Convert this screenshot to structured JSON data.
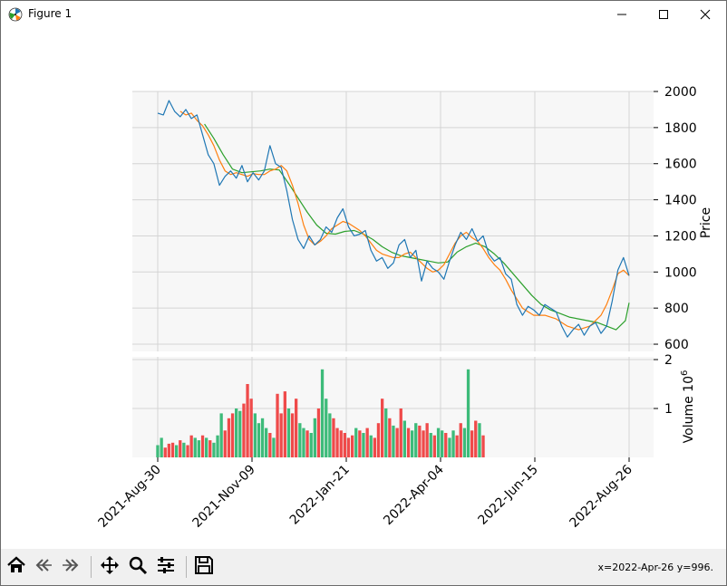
{
  "window": {
    "title": "Figure 1",
    "icons": [
      "matplotlib-logo-icon",
      "minimize-icon",
      "maximize-icon",
      "close-icon"
    ]
  },
  "toolbar": {
    "buttons": [
      "home-icon",
      "back-icon",
      "forward-icon",
      "pan-icon",
      "zoom-icon",
      "configure-subplots-icon",
      "save-icon"
    ],
    "coords": "x=2022-Apr-26 y=996."
  },
  "colors": {
    "price": "#1f77b4",
    "ma_short": "#ff7f0e",
    "ma_long": "#2ca02c",
    "up": "#3dbb7a",
    "down": "#ef4a4a",
    "axes_bg": "#f7f7f7",
    "grid": "#d4d4d4"
  },
  "chart_data": [
    {
      "type": "line",
      "ylabel": "Price",
      "ylim": [
        560,
        2000
      ],
      "y_ticks": [
        "2000",
        "1800",
        "1600",
        "1400",
        "1200",
        "1000",
        "800",
        "600"
      ],
      "x_ticks": [
        "2021-Aug-30",
        "2021-Nov-09",
        "2022-Jan-21",
        "2022-Apr-04",
        "2022-Jun-15",
        "2022-Aug-26"
      ],
      "grid": true,
      "series": [
        {
          "role": "close",
          "x": [
            0,
            3,
            6,
            9,
            12,
            15,
            18,
            21,
            24,
            27,
            30,
            33,
            36,
            39,
            42,
            45,
            48,
            51,
            54,
            57,
            60,
            63,
            66,
            69,
            72,
            75,
            78,
            81,
            84,
            87,
            90,
            93,
            96,
            99,
            102,
            105,
            108,
            111,
            114,
            117,
            120,
            123,
            126,
            129,
            132,
            135,
            138,
            141,
            144,
            147,
            150,
            153,
            156,
            159,
            162,
            165,
            168,
            171,
            174,
            177,
            180,
            183,
            186,
            189,
            192,
            195,
            198,
            201,
            204,
            207,
            210,
            213,
            216,
            219,
            222,
            225,
            228,
            231,
            234,
            237,
            240,
            243,
            246,
            249,
            252
          ],
          "y": [
            1880,
            1870,
            1950,
            1890,
            1860,
            1900,
            1850,
            1870,
            1760,
            1650,
            1600,
            1480,
            1530,
            1560,
            1520,
            1590,
            1500,
            1550,
            1510,
            1560,
            1700,
            1600,
            1580,
            1450,
            1290,
            1180,
            1130,
            1200,
            1150,
            1180,
            1250,
            1220,
            1300,
            1350,
            1250,
            1200,
            1210,
            1230,
            1120,
            1060,
            1080,
            1020,
            1050,
            1150,
            1180,
            1080,
            1120,
            950,
            1060,
            1020,
            1000,
            960,
            1060,
            1150,
            1220,
            1180,
            1240,
            1170,
            1200,
            1100,
            1060,
            1080,
            990,
            960,
            820,
            760,
            810,
            790,
            760,
            820,
            800,
            780,
            700,
            640,
            680,
            710,
            650,
            700,
            720,
            660,
            700,
            840,
            1010,
            1080,
            980
          ]
        },
        {
          "role": "ma_short",
          "x": [
            12,
            15,
            18,
            21,
            24,
            27,
            30,
            33,
            36,
            39,
            42,
            45,
            48,
            51,
            54,
            57,
            60,
            63,
            66,
            69,
            72,
            75,
            78,
            81,
            84,
            87,
            90,
            93,
            96,
            99,
            102,
            105,
            108,
            111,
            114,
            117,
            120,
            123,
            126,
            129,
            132,
            135,
            138,
            141,
            144,
            147,
            150,
            153,
            156,
            159,
            162,
            165,
            168,
            171,
            174,
            177,
            180,
            183,
            186,
            189,
            192,
            195,
            198,
            201,
            204,
            207,
            210,
            213,
            216,
            219,
            222,
            225,
            228,
            231,
            234,
            237,
            240,
            243,
            246,
            249,
            252
          ],
          "y": [
            1890,
            1870,
            1880,
            1840,
            1810,
            1760,
            1700,
            1620,
            1560,
            1540,
            1550,
            1540,
            1530,
            1545,
            1540,
            1540,
            1560,
            1570,
            1590,
            1560,
            1480,
            1380,
            1260,
            1180,
            1150,
            1170,
            1200,
            1240,
            1260,
            1280,
            1270,
            1250,
            1230,
            1200,
            1160,
            1120,
            1100,
            1090,
            1080,
            1080,
            1100,
            1110,
            1080,
            1050,
            1020,
            1000,
            1010,
            1040,
            1100,
            1160,
            1200,
            1220,
            1190,
            1170,
            1130,
            1080,
            1040,
            1010,
            960,
            900,
            850,
            800,
            780,
            760,
            760,
            760,
            750,
            740,
            720,
            700,
            690,
            680,
            690,
            700,
            730,
            760,
            820,
            900,
            990,
            1010,
            980
          ]
        },
        {
          "role": "ma_long",
          "x": [
            25,
            30,
            35,
            40,
            45,
            50,
            55,
            60,
            65,
            70,
            75,
            80,
            85,
            90,
            95,
            100,
            105,
            110,
            115,
            120,
            125,
            130,
            135,
            140,
            145,
            150,
            155,
            160,
            165,
            170,
            175,
            180,
            185,
            190,
            195,
            200,
            205,
            210,
            215,
            220,
            225,
            230,
            235,
            240,
            245,
            250,
            252
          ],
          "y": [
            1820,
            1740,
            1650,
            1570,
            1550,
            1555,
            1560,
            1570,
            1565,
            1490,
            1410,
            1330,
            1260,
            1215,
            1210,
            1225,
            1230,
            1210,
            1180,
            1140,
            1110,
            1090,
            1080,
            1070,
            1060,
            1050,
            1055,
            1110,
            1140,
            1160,
            1140,
            1100,
            1050,
            990,
            930,
            870,
            820,
            790,
            770,
            750,
            740,
            730,
            720,
            700,
            680,
            730,
            830
          ]
        }
      ]
    },
    {
      "type": "bar",
      "ylabel": "Volume  10",
      "ylabel_exponent": "6",
      "y_ticks": [
        "2",
        "1"
      ],
      "ylim": [
        0,
        2
      ],
      "grid": true,
      "x_start": 0,
      "x_step": 2,
      "values": [
        0.25,
        0.4,
        0.2,
        0.28,
        0.3,
        0.25,
        0.35,
        0.3,
        0.25,
        0.45,
        0.4,
        0.35,
        0.45,
        0.4,
        0.35,
        0.3,
        0.45,
        0.9,
        0.55,
        0.8,
        0.9,
        1.0,
        0.95,
        1.1,
        1.5,
        1.2,
        0.9,
        0.7,
        0.8,
        0.6,
        0.5,
        0.4,
        1.3,
        0.9,
        1.35,
        1.0,
        0.9,
        1.2,
        0.7,
        0.6,
        0.55,
        0.5,
        0.8,
        1.0,
        1.8,
        1.2,
        0.9,
        0.8,
        0.6,
        0.55,
        0.5,
        0.4,
        0.45,
        0.6,
        0.55,
        0.5,
        0.6,
        0.45,
        0.4,
        0.7,
        1.2,
        1.0,
        0.8,
        0.65,
        0.6,
        1.0,
        0.75,
        0.6,
        0.55,
        0.7,
        0.65,
        0.55,
        0.7,
        0.5,
        0.45,
        0.6,
        0.55,
        0.5,
        0.4,
        0.55,
        0.45,
        0.7,
        0.6,
        1.8,
        0.55,
        0.75,
        0.7,
        0.45
      ],
      "directions": [
        "up",
        "up",
        "down",
        "down",
        "down",
        "up",
        "down",
        "up",
        "down",
        "down",
        "up",
        "up",
        "down",
        "up",
        "down",
        "up",
        "up",
        "up",
        "down",
        "down",
        "down",
        "up",
        "up",
        "down",
        "down",
        "down",
        "up",
        "up",
        "up",
        "up",
        "down",
        "up",
        "down",
        "down",
        "down",
        "up",
        "down",
        "down",
        "up",
        "up",
        "down",
        "up",
        "up",
        "down",
        "up",
        "up",
        "up",
        "down",
        "down",
        "down",
        "down",
        "down",
        "down",
        "up",
        "down",
        "up",
        "down",
        "up",
        "down",
        "down",
        "down",
        "up",
        "down",
        "up",
        "down",
        "down",
        "up",
        "down",
        "up",
        "up",
        "down",
        "down",
        "down",
        "up",
        "down",
        "up",
        "up",
        "down",
        "up",
        "up",
        "down",
        "down",
        "up",
        "up",
        "down",
        "down",
        "up",
        "down"
      ]
    }
  ]
}
